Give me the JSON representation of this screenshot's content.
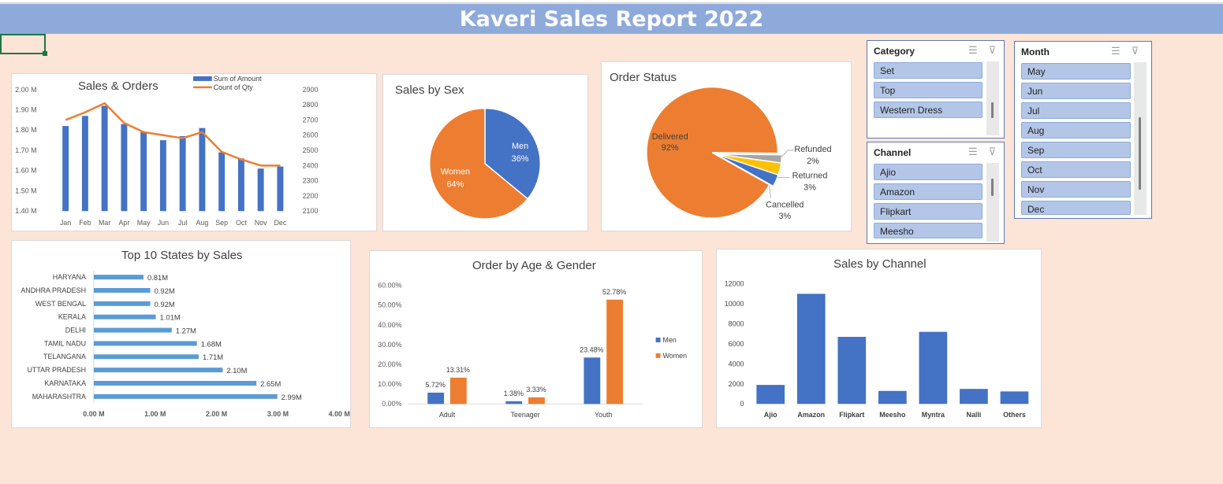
{
  "title": "Kaveri Sales Report 2022",
  "colors": {
    "blue": "#4472c4",
    "orange": "#ed7d31",
    "gray": "#a5a5a5",
    "yellow": "#ffc000",
    "banner": "#8eaadb",
    "background": "#fce4d6",
    "bar_light_blue": "#5b9bd5"
  },
  "sales_orders": {
    "title": "Sales & Orders",
    "legend": [
      "Sum of Amount",
      "Count of Qty"
    ],
    "left_ticks": [
      "2.00 M",
      "1.90 M",
      "1.80 M",
      "1.70 M",
      "1.60 M",
      "1.50 M",
      "1.40 M"
    ],
    "right_ticks": [
      "2900",
      "2800",
      "2700",
      "2600",
      "2500",
      "2400",
      "2300",
      "2200",
      "2100"
    ]
  },
  "sales_by_sex": {
    "title": "Sales by Sex",
    "labels": [
      "Men",
      "Women"
    ],
    "pcts": [
      "36%",
      "64%"
    ]
  },
  "order_status": {
    "title": "Order Status",
    "labels": [
      "Delivered",
      "Refunded",
      "Returned",
      "Cancelled"
    ],
    "pcts": [
      "92%",
      "2%",
      "3%",
      "3%"
    ]
  },
  "top_states": {
    "title": "Top 10 States by Sales",
    "x_ticks": [
      "0.00 M",
      "1.00 M",
      "2.00 M",
      "3.00 M",
      "4.00 M"
    ],
    "value_labels": [
      "0.81M",
      "0.92M",
      "0.92M",
      "1.01M",
      "1.27M",
      "1.68M",
      "1.71M",
      "2.10M",
      "2.65M",
      "2.99M"
    ]
  },
  "age_gender": {
    "title": "Order by Age & Gender",
    "y_ticks": [
      "60.00%",
      "50.00%",
      "40.00%",
      "30.00%",
      "20.00%",
      "10.00%",
      "0.00%"
    ],
    "legend": [
      "Men",
      "Women"
    ],
    "labels": {
      "men": [
        "5.72%",
        "1.38%",
        "23.48%"
      ],
      "women": [
        "13.31%",
        "3.33%",
        "52.78%"
      ]
    }
  },
  "sales_by_channel": {
    "title": "Sales by Channel",
    "y_ticks": [
      "12000",
      "10000",
      "8000",
      "6000",
      "4000",
      "2000",
      "0"
    ]
  },
  "chart_data": [
    {
      "type": "line",
      "subtype": "combo bar+line",
      "title": "Sales & Orders",
      "categories": [
        "Jan",
        "Feb",
        "Mar",
        "Apr",
        "May",
        "Jun",
        "Jul",
        "Aug",
        "Sep",
        "Oct",
        "Nov",
        "Dec"
      ],
      "series": [
        {
          "name": "Sum of Amount",
          "type": "bar",
          "axis": "left",
          "values": [
            1.82,
            1.87,
            1.92,
            1.83,
            1.79,
            1.75,
            1.77,
            1.81,
            1.69,
            1.66,
            1.61,
            1.62
          ]
        },
        {
          "name": "Count of Qty",
          "type": "line",
          "axis": "right",
          "values": [
            2700,
            2750,
            2810,
            2680,
            2620,
            2600,
            2580,
            2620,
            2490,
            2440,
            2400,
            2400
          ]
        }
      ],
      "ylim": [
        1.4,
        2.0
      ],
      "y2lim": [
        2100,
        2900
      ],
      "legend": "top"
    },
    {
      "type": "pie",
      "title": "Sales by Sex",
      "categories": [
        "Men",
        "Women"
      ],
      "values": [
        36,
        64
      ]
    },
    {
      "type": "pie",
      "title": "Order Status",
      "categories": [
        "Delivered",
        "Refunded",
        "Returned",
        "Cancelled"
      ],
      "values": [
        92,
        2,
        3,
        3
      ]
    },
    {
      "type": "bar",
      "orientation": "horizontal",
      "title": "Top 10 States by Sales",
      "categories": [
        "HARYANA",
        "ANDHRA PRADESH",
        "WEST BENGAL",
        "KERALA",
        "DELHI",
        "TAMIL NADU",
        "TELANGANA",
        "UTTAR PRADESH",
        "KARNATAKA",
        "MAHARASHTRA"
      ],
      "values": [
        0.81,
        0.92,
        0.92,
        1.01,
        1.27,
        1.68,
        1.71,
        2.1,
        2.65,
        2.99
      ],
      "xlim": [
        0,
        4
      ]
    },
    {
      "type": "bar",
      "title": "Order by Age & Gender",
      "categories": [
        "Adult",
        "Teenager",
        "Youth"
      ],
      "series": [
        {
          "name": "Men",
          "values": [
            5.72,
            1.38,
            23.48
          ]
        },
        {
          "name": "Women",
          "values": [
            13.31,
            3.33,
            52.78
          ]
        }
      ],
      "ylim": [
        0,
        60
      ],
      "legend": "right"
    },
    {
      "type": "bar",
      "title": "Sales by Channel",
      "categories": [
        "Ajio",
        "Amazon",
        "Flipkart",
        "Meesho",
        "Myntra",
        "Nalli",
        "Others"
      ],
      "values": [
        1900,
        11000,
        6700,
        1300,
        7200,
        1500,
        1250
      ],
      "ylim": [
        0,
        12000
      ]
    }
  ],
  "slicers": {
    "category": {
      "header": "Category",
      "items": [
        "Set",
        "Top",
        "Western Dress"
      ]
    },
    "channel": {
      "header": "Channel",
      "items": [
        "Ajio",
        "Amazon",
        "Flipkart",
        "Meesho"
      ]
    },
    "month": {
      "header": "Month",
      "items": [
        "May",
        "Jun",
        "Jul",
        "Aug",
        "Sep",
        "Oct",
        "Nov",
        "Dec"
      ]
    },
    "icons": [
      "multi-select-icon",
      "clear-filter-icon"
    ]
  }
}
